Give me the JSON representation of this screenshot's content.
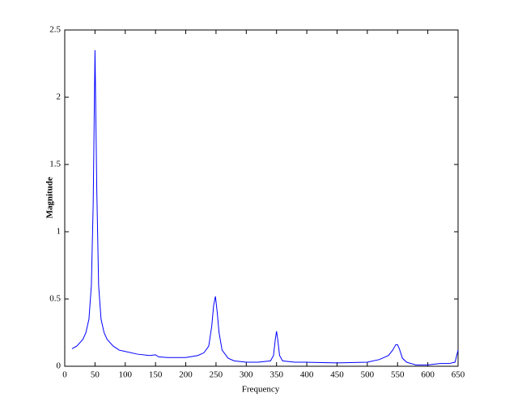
{
  "chart_data": {
    "type": "line",
    "xlabel": "Frequency",
    "ylabel": "Magnitude",
    "color": "#0000ff",
    "x": [
      12,
      20,
      30,
      35,
      40,
      44,
      47,
      50,
      53,
      56,
      60,
      65,
      70,
      80,
      90,
      100,
      120,
      140,
      150,
      155,
      170,
      200,
      220,
      230,
      238,
      243,
      246,
      249,
      252,
      255,
      260,
      270,
      280,
      300,
      320,
      340,
      345,
      348,
      350,
      352,
      355,
      360,
      380,
      400,
      450,
      500,
      520,
      535,
      542,
      547,
      550,
      553,
      558,
      565,
      580,
      600,
      620,
      635,
      645,
      650
    ],
    "values": [
      0.13,
      0.15,
      0.2,
      0.25,
      0.35,
      0.6,
      1.2,
      2.35,
      1.3,
      0.6,
      0.35,
      0.25,
      0.2,
      0.15,
      0.12,
      0.11,
      0.09,
      0.08,
      0.085,
      0.07,
      0.065,
      0.065,
      0.08,
      0.1,
      0.15,
      0.3,
      0.45,
      0.52,
      0.4,
      0.25,
      0.12,
      0.06,
      0.04,
      0.03,
      0.03,
      0.04,
      0.08,
      0.2,
      0.26,
      0.2,
      0.08,
      0.04,
      0.03,
      0.03,
      0.025,
      0.03,
      0.05,
      0.08,
      0.12,
      0.16,
      0.16,
      0.13,
      0.06,
      0.03,
      0.01,
      0.01,
      0.02,
      0.02,
      0.03,
      0.12
    ],
    "xlim": [
      0,
      650
    ],
    "xticks": [
      0,
      50,
      100,
      150,
      200,
      250,
      300,
      350,
      400,
      450,
      500,
      550,
      600,
      650
    ],
    "ylim": [
      0,
      2.5
    ],
    "yticks": [
      0,
      0.5,
      1,
      1.5,
      2,
      2.5
    ],
    "grid": false
  }
}
